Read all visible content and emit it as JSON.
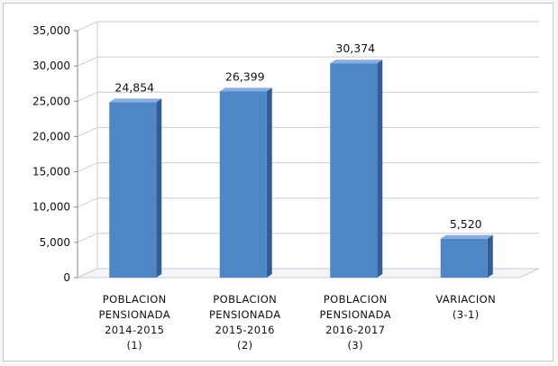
{
  "chart_data": {
    "type": "bar",
    "categories": [
      [
        "POBLACION",
        "PENSIONADA",
        "2014-2015",
        "(1)"
      ],
      [
        "POBLACION",
        "PENSIONADA",
        "2015-2016",
        "(2)"
      ],
      [
        "POBLACION",
        "PENSIONADA",
        "2016-2017",
        "(3)"
      ],
      [
        "VARIACION",
        "(3-1)"
      ]
    ],
    "values": [
      24854,
      26399,
      30374,
      5520
    ],
    "data_labels": [
      "24,854",
      "26,399",
      "30,374",
      "5,520"
    ],
    "ylim": [
      0,
      35000
    ],
    "yticks": [
      0,
      5000,
      10000,
      15000,
      20000,
      25000,
      30000,
      35000
    ],
    "ytick_labels": [
      "0",
      "5,000",
      "10,000",
      "15,000",
      "20,000",
      "25,000",
      "30,000",
      "35,000"
    ],
    "grid": true,
    "legend": "none",
    "colors": {
      "bar_front": "#4f86c6",
      "bar_side": "#2f5f96",
      "bar_top": "#86aee0",
      "grid": "#c9ced6",
      "axis": "#8a8a8a"
    }
  }
}
